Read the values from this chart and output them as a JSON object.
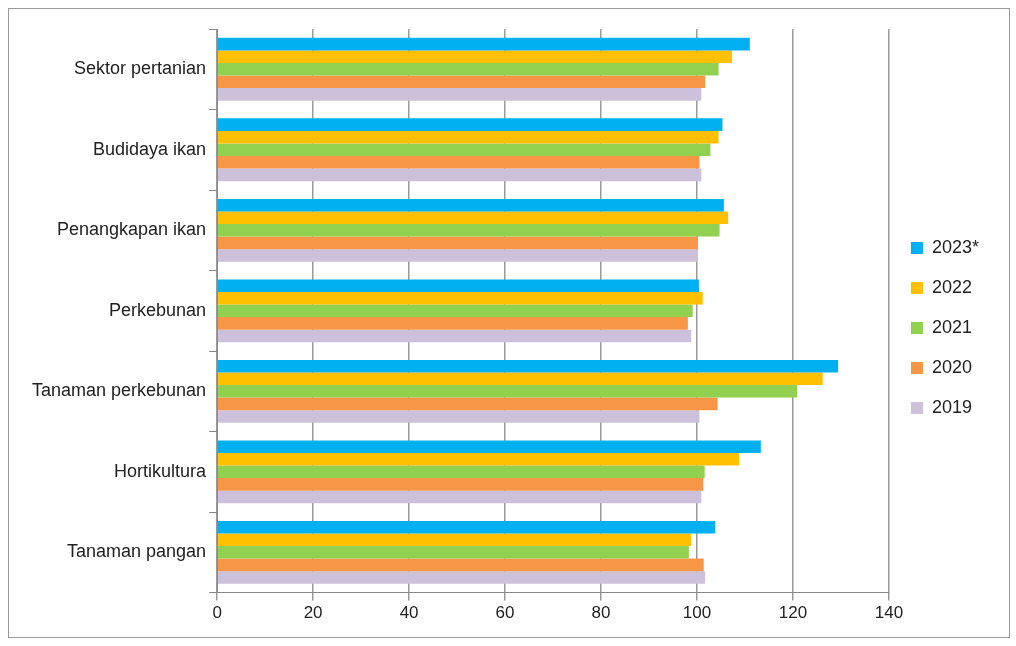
{
  "chart_data": {
    "type": "bar",
    "orientation": "horizontal",
    "categories": [
      "Sektor pertanian",
      "Budidaya ikan",
      "Penangkapan ikan",
      "Perkebunan",
      "Tanaman perkebunan",
      "Hortikultura",
      "Tanaman pangan"
    ],
    "series": [
      {
        "name": "2023*",
        "color": "#00b0f0",
        "values": [
          111.0,
          105.3,
          105.6,
          100.4,
          129.4,
          113.3,
          103.8
        ]
      },
      {
        "name": "2022",
        "color": "#ffc000",
        "values": [
          107.3,
          104.5,
          106.5,
          101.2,
          126.2,
          108.8,
          98.8
        ]
      },
      {
        "name": "2021",
        "color": "#92d050",
        "values": [
          104.5,
          102.8,
          104.7,
          99.1,
          120.9,
          101.6,
          98.3
        ]
      },
      {
        "name": "2020",
        "color": "#f79646",
        "values": [
          101.7,
          100.5,
          100.2,
          98.1,
          104.3,
          101.3,
          101.4
        ]
      },
      {
        "name": "2019",
        "color": "#ccc0da",
        "values": [
          100.9,
          100.9,
          100.2,
          98.8,
          100.5,
          100.9,
          101.7
        ]
      }
    ],
    "xlim": [
      0,
      140
    ],
    "xticks": [
      0,
      20,
      40,
      60,
      80,
      100,
      120,
      140
    ],
    "grid": "x",
    "legend": "right"
  }
}
